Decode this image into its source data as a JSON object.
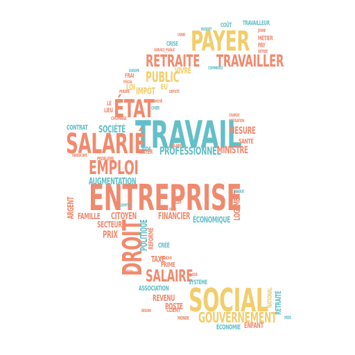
{
  "colors": {
    "orange": "#f08a6e",
    "yellow": "#f2cd6b",
    "teal": "#63bfc8"
  },
  "words": {
    "travail": "TRAVAIL",
    "entreprise": "ENTREPRISE",
    "social": "SOCIAL",
    "payer": "PAYER",
    "salarie": "SALARIÉ",
    "droit": "DROIT",
    "etat": "ÉTAT",
    "emploi": "EMPLOI",
    "travailler": "TRAVAILLER",
    "retraite": "RETRAITE",
    "salaire": "SALAIRE",
    "gouvernement": "GOUVERNEMENT",
    "public": "PUBLIC",
    "professionnel": "PROFESSIONNEL",
    "societe": "SOCIÉTÉ",
    "mesure": "MESURE",
    "ministre": "MINISTRE",
    "augmentation": "AUGMENTATION",
    "financier": "FINANCIER",
    "economique": "ÉCONOMIQUE",
    "citoyen": "CITOYEN",
    "secteur": "SECTEUR",
    "politique": "POLITIQUE",
    "prix": "PRIX",
    "taxe": "TAXE",
    "famille": "FAMILLE",
    "argent": "ARGENT",
    "logement": "LOGEMENT",
    "revenu": "REVENU",
    "poste": "POSTE",
    "association": "ASSOCIATION",
    "systeme": "SYSTÈME",
    "prime": "PRIME",
    "cree": "CRÉÉ",
    "reforme": "RÉFORME",
    "sante": "SANTÉ",
    "enfant": "ENFANT",
    "economie": "ÉCONOMIE",
    "national": "NATIONAL",
    "retraite_v": "RETRAITÉ",
    "impot": "IMPÔT",
    "loi": "LOI",
    "vivre": "VIVRE",
    "crise": "CRISE",
    "cout": "COÛT",
    "travailleur": "TRAVAILLEUR",
    "metier": "MÉTIER",
    "pay": "PAY",
    "contrat": "CONTRAT",
    "lieu": "LIEU",
    "le": "LE",
    "frai": "FRAI",
    "eu": "EU",
    "client": "CLIENT",
    "monde": "MONDE",
    "aide": "AIDE",
    "payer_small": "PAYER",
    "chomage": "CHÔMAGE",
    "cher": "CHER",
    "entree": "ENTRÉE",
    "probleme": "PROBLÈME",
    "handicape": "HANDICAPÉ",
    "risque": "RISQUE",
    "hausse": "HAUSSE",
    "depute": "DÉPUTÉ",
    "fiscal": "FISCAL",
    "marche": "MARCHÉ",
    "service_public": "SERVICE_PUBLIC",
    "banque": "BANQUE",
    "europe": "EUROPE",
    "charge": "CHARGE",
    "cotisation": "COTISATION",
    "budget": "BUDGET",
    "commerce": "COMMERCE",
    "usine": "USINE",
    "aller": "ALLER",
    "faire": "FAIRE",
    "compte": "COMPTE",
    "besoin": "BESOIN",
    "dette": "DETTE",
    "mois": "MOIS",
    "jeune": "JEUNE",
    "salarie_small": "SALARIÉ",
    "perdre": "PERDRE"
  }
}
